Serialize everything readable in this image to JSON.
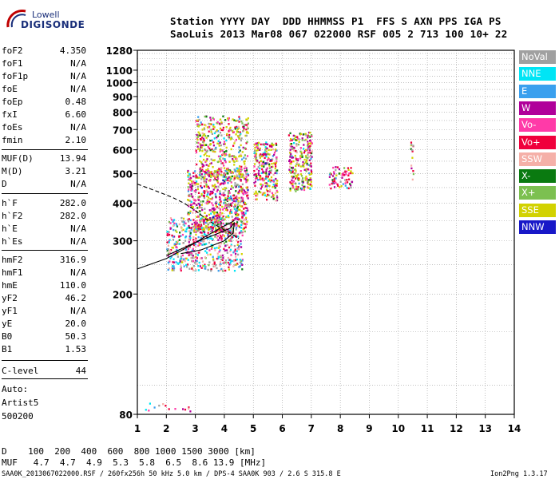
{
  "logo": {
    "line1": "Lowell",
    "line2": "DIGISONDE"
  },
  "header": {
    "line1": "Station YYYY DAY  DDD HHMMSS P1  FFS S AXN PPS IGA PS",
    "line2": "SaoLuis 2013 Mar08 067 022000 RSF 005 2 713 100 10+ 22"
  },
  "params": {
    "group1": [
      {
        "name": "foF2",
        "value": "4.350"
      },
      {
        "name": "foF1",
        "value": "N/A"
      },
      {
        "name": "foF1p",
        "value": "N/A"
      },
      {
        "name": "foE",
        "value": "N/A"
      },
      {
        "name": "foEp",
        "value": "0.48"
      },
      {
        "name": "fxI",
        "value": "6.60"
      },
      {
        "name": "foEs",
        "value": "N/A"
      },
      {
        "name": "fmin",
        "value": "2.10"
      }
    ],
    "group2": [
      {
        "name": "MUF(D)",
        "value": "13.94"
      },
      {
        "name": "M(D)",
        "value": "3.21"
      },
      {
        "name": "D",
        "value": "N/A"
      }
    ],
    "group3": [
      {
        "name": "h`F",
        "value": "282.0"
      },
      {
        "name": "h`F2",
        "value": "282.0"
      },
      {
        "name": "h`E",
        "value": "N/A"
      },
      {
        "name": "h`Es",
        "value": "N/A"
      }
    ],
    "group4": [
      {
        "name": "hmF2",
        "value": "316.9"
      },
      {
        "name": "hmF1",
        "value": "N/A"
      },
      {
        "name": "hmE",
        "value": "110.0"
      },
      {
        "name": "yF2",
        "value": "46.2"
      },
      {
        "name": "yF1",
        "value": "N/A"
      },
      {
        "name": "yE",
        "value": "20.0"
      },
      {
        "name": "B0",
        "value": "50.3"
      },
      {
        "name": "B1",
        "value": "1.53"
      }
    ],
    "clevel": {
      "name": "C-level",
      "value": "44"
    },
    "auto_label": "Auto:",
    "artist": "Artist5",
    "code": "500200"
  },
  "legend": [
    {
      "label": "NoVal",
      "color": "#a0a0a0"
    },
    {
      "label": "NNE",
      "color": "#00e5f5"
    },
    {
      "label": "E",
      "color": "#3aa0ee"
    },
    {
      "label": "W",
      "color": "#b0009a"
    },
    {
      "label": "Vo-",
      "color": "#ff3aa8"
    },
    {
      "label": "Vo+",
      "color": "#f0003c"
    },
    {
      "label": "SSW",
      "color": "#f5b0a8"
    },
    {
      "label": "X-",
      "color": "#0a7a10"
    },
    {
      "label": "X+",
      "color": "#7cc050"
    },
    {
      "label": "SSE",
      "color": "#d2d200"
    },
    {
      "label": "NNW",
      "color": "#1818c8"
    }
  ],
  "footer": {
    "d_line": "D    100  200  400  600  800 1000 1500 3000 [km]",
    "muf_line": "MUF   4.7  4.7  4.9  5.3  5.8  6.5  8.6 13.9 [MHz]",
    "file_line": "SAA0K_2013067022000.RSF / 260fx256h 50 kHz 5.0 km / DPS-4 SAA0K 903 / 2.6 S 315.8 E",
    "version": "Ion2Png 1.3.17"
  },
  "chart_data": {
    "type": "scatter",
    "title": "",
    "xlabel": "",
    "ylabel": "",
    "x_unit": "MHz",
    "y_unit": "km",
    "xlim": [
      1,
      14
    ],
    "ylim": [
      80,
      1280
    ],
    "y_scale": "log",
    "xticks": [
      1,
      2,
      3,
      4,
      5,
      6,
      7,
      8,
      9,
      10,
      11,
      12,
      13,
      14
    ],
    "yticks": [
      80,
      200,
      300,
      400,
      500,
      600,
      700,
      800,
      900,
      1000,
      1100,
      1280
    ],
    "grid": true,
    "legend_position": "right",
    "clusters": [
      {
        "name": "o-trace-low",
        "x": [
          2.0,
          4.6
        ],
        "y": [
          240,
          360
        ]
      },
      {
        "name": "main-mid",
        "x": [
          2.7,
          4.8
        ],
        "y": [
          320,
          520
        ]
      },
      {
        "name": "main-high",
        "x": [
          3.0,
          4.8
        ],
        "y": [
          480,
          780
        ]
      },
      {
        "name": "col-5.5",
        "x": [
          5.0,
          5.8
        ],
        "y": [
          410,
          640
        ]
      },
      {
        "name": "col-6.6",
        "x": [
          6.2,
          7.0
        ],
        "y": [
          440,
          690
        ]
      },
      {
        "name": "col-7.9",
        "x": [
          7.6,
          8.4
        ],
        "y": [
          450,
          530
        ]
      },
      {
        "name": "col-10.5",
        "x": [
          10.4,
          10.5
        ],
        "y": [
          480,
          640
        ]
      },
      {
        "name": "bottom",
        "x": [
          1.2,
          2.8
        ],
        "y": [
          82,
          88
        ]
      }
    ],
    "profile_curves": [
      {
        "name": "solid-upper",
        "points": [
          [
            1.0,
            242
          ],
          [
            2.0,
            262
          ],
          [
            2.8,
            288
          ],
          [
            3.4,
            312
          ],
          [
            4.0,
            336
          ],
          [
            4.35,
            350
          ]
        ]
      },
      {
        "name": "solid-loop",
        "points": [
          [
            2.0,
            268
          ],
          [
            3.0,
            296
          ],
          [
            3.8,
            318
          ],
          [
            4.2,
            330
          ],
          [
            4.35,
            345
          ],
          [
            4.3,
            318
          ],
          [
            4.0,
            300
          ],
          [
            3.2,
            280
          ],
          [
            2.5,
            272
          ]
        ]
      },
      {
        "name": "dashed",
        "points": [
          [
            1.0,
            462
          ],
          [
            1.6,
            440
          ],
          [
            2.2,
            418
          ],
          [
            2.6,
            400
          ],
          [
            3.0,
            378
          ],
          [
            3.4,
            352
          ],
          [
            3.8,
            334
          ],
          [
            4.2,
            318
          ],
          [
            4.5,
            305
          ]
        ]
      }
    ]
  }
}
